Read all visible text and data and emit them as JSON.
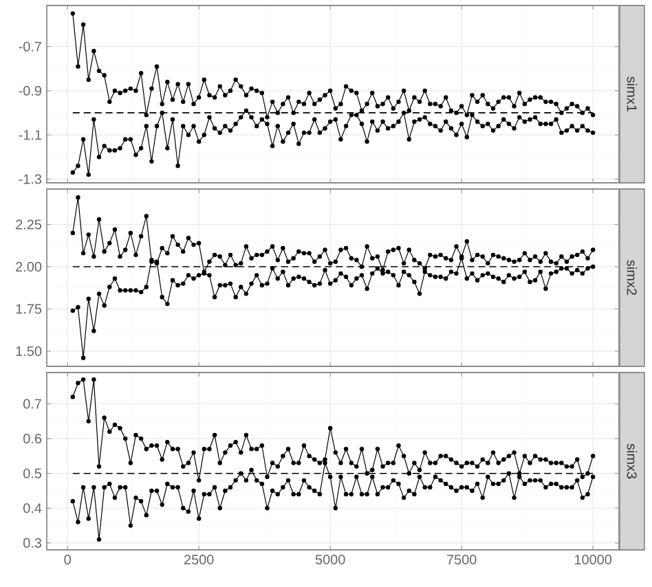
{
  "chart_data": [
    {
      "type": "line",
      "ylabel": "simx1",
      "marker": "circle",
      "grid": true,
      "tick_labels": "y",
      "x": [
        100,
        200,
        300,
        400,
        500,
        600,
        700,
        800,
        900,
        1000,
        1100,
        1200,
        1300,
        1400,
        1500,
        1600,
        1700,
        1800,
        1900,
        2000,
        2100,
        2200,
        2300,
        2400,
        2500,
        2600,
        2700,
        2800,
        2900,
        3000,
        3100,
        3200,
        3300,
        3400,
        3500,
        3600,
        3700,
        3800,
        3900,
        4000,
        4100,
        4200,
        4300,
        4400,
        4500,
        4600,
        4700,
        4800,
        4900,
        5000,
        5100,
        5200,
        5300,
        5400,
        5500,
        5600,
        5700,
        5800,
        5900,
        6000,
        6100,
        6200,
        6300,
        6400,
        6500,
        6600,
        6700,
        6800,
        6900,
        7000,
        7100,
        7200,
        7300,
        7400,
        7500,
        7600,
        7700,
        7800,
        7900,
        8000,
        8100,
        8200,
        8300,
        8400,
        8500,
        8600,
        8700,
        8800,
        8900,
        9000,
        9100,
        9200,
        9300,
        9400,
        9500,
        9600,
        9700,
        9800,
        9900,
        10000
      ],
      "xlim": [
        -395,
        10495
      ],
      "ylim": [
        -1.317,
        -0.514
      ],
      "xticks": [
        0,
        2500,
        5000,
        7500,
        10000
      ],
      "yticks": [
        -1.3,
        -1.1,
        -0.9,
        -0.7
      ],
      "ref_lines": [
        {
          "axis": "y",
          "value": -1,
          "line_style": "dashed",
          "color": "#000000"
        }
      ],
      "series": [
        {
          "color": "#000000",
          "values": [
            -0.55,
            -0.79,
            -0.6,
            -0.85,
            -0.72,
            -0.81,
            -0.83,
            -0.95,
            -0.9,
            -0.91,
            -0.9,
            -0.89,
            -0.9,
            -0.82,
            -1.01,
            -0.89,
            -0.79,
            -0.96,
            -0.86,
            -0.94,
            -0.87,
            -0.95,
            -0.87,
            -0.96,
            -0.93,
            -0.85,
            -0.92,
            -0.93,
            -0.88,
            -0.92,
            -0.9,
            -0.85,
            -0.88,
            -0.92,
            -0.89,
            -0.9,
            -0.91,
            -1.02,
            -0.95,
            -1.0,
            -0.96,
            -0.93,
            -1.0,
            -0.95,
            -0.96,
            -0.91,
            -0.96,
            -0.94,
            -0.92,
            -0.9,
            -0.98,
            -0.96,
            -0.88,
            -0.9,
            -0.91,
            -0.99,
            -0.96,
            -0.91,
            -0.97,
            -0.96,
            -0.93,
            -0.98,
            -0.95,
            -0.9,
            -0.99,
            -0.93,
            -0.95,
            -0.9,
            -0.96,
            -0.96,
            -0.97,
            -0.93,
            -0.99,
            -1.0,
            -0.97,
            -1.01,
            -0.92,
            -0.95,
            -0.92,
            -0.96,
            -0.98,
            -0.95,
            -0.93,
            -0.93,
            -0.97,
            -0.91,
            -0.96,
            -0.94,
            -0.93,
            -0.93,
            -0.95,
            -0.95,
            -0.96,
            -1.0,
            -0.98,
            -0.96,
            -0.97,
            -1.0,
            -0.98,
            -1.01
          ]
        },
        {
          "color": "#000000",
          "values": [
            -1.27,
            -1.24,
            -1.12,
            -1.28,
            -1.03,
            -1.2,
            -1.15,
            -1.17,
            -1.17,
            -1.16,
            -1.12,
            -1.12,
            -1.19,
            -1.16,
            -1.06,
            -1.22,
            -1.06,
            -1.0,
            -1.16,
            -1.03,
            -1.24,
            -1.06,
            -1.1,
            -1.06,
            -1.13,
            -1.1,
            -1.02,
            -1.07,
            -1.09,
            -1.06,
            -1.08,
            -1.05,
            -1.02,
            -0.99,
            -1.02,
            -1.06,
            -1.03,
            -1.05,
            -1.15,
            -1.06,
            -1.13,
            -1.09,
            -1.05,
            -1.14,
            -1.09,
            -1.09,
            -1.03,
            -1.09,
            -1.07,
            -1.04,
            -1.03,
            -1.12,
            -1.06,
            -1.01,
            -1.01,
            -1.05,
            -1.13,
            -1.04,
            -1.08,
            -1.04,
            -1.07,
            -1.06,
            -1.04,
            -1.0,
            -1.12,
            -1.04,
            -1.03,
            -1.02,
            -1.05,
            -1.06,
            -1.08,
            -1.04,
            -1.07,
            -1.1,
            -1.05,
            -1.11,
            -1.01,
            -1.04,
            -1.06,
            -1.05,
            -1.08,
            -1.06,
            -1.03,
            -1.05,
            -1.07,
            -1.02,
            -1.04,
            -1.03,
            -1.02,
            -1.05,
            -1.05,
            -1.05,
            -1.03,
            -1.09,
            -1.08,
            -1.06,
            -1.08,
            -1.06,
            -1.08,
            -1.09
          ]
        }
      ]
    },
    {
      "type": "line",
      "ylabel": "simx2",
      "marker": "circle",
      "grid": true,
      "tick_labels": "y",
      "x": [
        100,
        200,
        300,
        400,
        500,
        600,
        700,
        800,
        900,
        1000,
        1100,
        1200,
        1300,
        1400,
        1500,
        1600,
        1700,
        1800,
        1900,
        2000,
        2100,
        2200,
        2300,
        2400,
        2500,
        2600,
        2700,
        2800,
        2900,
        3000,
        3100,
        3200,
        3300,
        3400,
        3500,
        3600,
        3700,
        3800,
        3900,
        4000,
        4100,
        4200,
        4300,
        4400,
        4500,
        4600,
        4700,
        4800,
        4900,
        5000,
        5100,
        5200,
        5300,
        5400,
        5500,
        5600,
        5700,
        5800,
        5900,
        6000,
        6100,
        6200,
        6300,
        6400,
        6500,
        6600,
        6700,
        6800,
        6900,
        7000,
        7100,
        7200,
        7300,
        7400,
        7500,
        7600,
        7700,
        7800,
        7900,
        8000,
        8100,
        8200,
        8300,
        8400,
        8500,
        8600,
        8700,
        8800,
        8900,
        9000,
        9100,
        9200,
        9300,
        9400,
        9500,
        9600,
        9700,
        9800,
        9900,
        10000
      ],
      "xlim": [
        -395,
        10495
      ],
      "ylim": [
        1.41,
        2.46
      ],
      "xticks": [
        0,
        2500,
        5000,
        7500,
        10000
      ],
      "yticks": [
        {
          "value": 1.5,
          "label": "1.50"
        },
        {
          "value": 1.75,
          "label": "1.75"
        },
        {
          "value": 2,
          "label": "2.00"
        },
        {
          "value": 2.25,
          "label": "2.25"
        }
      ],
      "ref_lines": [
        {
          "axis": "y",
          "value": 2,
          "line_style": "dashed",
          "color": "#000000"
        }
      ],
      "series": [
        {
          "color": "#000000",
          "values": [
            2.2,
            2.41,
            2.08,
            2.19,
            2.06,
            2.28,
            2.09,
            2.14,
            2.22,
            2.06,
            2.1,
            2.2,
            2.07,
            2.18,
            2.3,
            2.03,
            2.02,
            2.11,
            2.08,
            2.18,
            2.13,
            2.09,
            2.17,
            2.13,
            2.14,
            1.97,
            2.03,
            2.07,
            2.06,
            2.01,
            2.07,
            2.01,
            2.02,
            2.12,
            2.05,
            2.07,
            2.07,
            2.09,
            2.12,
            2.04,
            2.11,
            2.03,
            2.05,
            2.09,
            2.08,
            2.08,
            2.03,
            2.06,
            2.1,
            2.02,
            2.03,
            2.1,
            2.11,
            2.05,
            2.04,
            2.0,
            2.12,
            2.05,
            2.06,
            1.98,
            2.09,
            2.1,
            2.11,
            2.02,
            2.1,
            2.04,
            2.02,
            1.99,
            2.07,
            2.06,
            2.07,
            2.05,
            2.04,
            2.12,
            2.06,
            2.15,
            2.04,
            2.07,
            2.06,
            2.02,
            2.07,
            2.06,
            2.05,
            2.04,
            2.03,
            2.04,
            2.08,
            2.04,
            2.06,
            2.03,
            2.08,
            2.03,
            2.02,
            2.06,
            2.03,
            2.06,
            2.07,
            2.09,
            2.05,
            2.1
          ]
        },
        {
          "color": "#000000",
          "values": [
            1.74,
            1.76,
            1.46,
            1.81,
            1.62,
            1.84,
            1.77,
            1.88,
            1.93,
            1.86,
            1.86,
            1.86,
            1.86,
            1.85,
            1.88,
            2.04,
            2.03,
            1.82,
            1.78,
            1.92,
            1.89,
            1.9,
            1.95,
            1.93,
            1.95,
            1.96,
            1.95,
            1.82,
            1.89,
            1.89,
            1.9,
            1.82,
            1.88,
            1.84,
            1.9,
            1.95,
            1.89,
            1.9,
            1.99,
            1.93,
            1.97,
            1.89,
            1.93,
            1.94,
            1.93,
            1.91,
            1.89,
            1.9,
            1.98,
            1.9,
            1.92,
            1.96,
            1.94,
            1.89,
            1.93,
            1.95,
            1.87,
            1.96,
            1.99,
            1.96,
            1.97,
            1.95,
            1.89,
            1.97,
            1.95,
            1.91,
            1.84,
            1.97,
            1.95,
            1.94,
            1.94,
            1.93,
            1.97,
            1.96,
            2.05,
            1.93,
            1.96,
            1.92,
            1.95,
            1.96,
            1.94,
            1.93,
            1.91,
            1.95,
            1.93,
            1.94,
            1.97,
            1.91,
            1.92,
            1.97,
            1.87,
            1.96,
            1.97,
            1.99,
            1.99,
            1.96,
            1.98,
            1.96,
            1.99,
            2.0
          ]
        }
      ]
    },
    {
      "type": "line",
      "ylabel": "simx3",
      "marker": "circle",
      "grid": true,
      "x": [
        100,
        200,
        300,
        400,
        500,
        600,
        700,
        800,
        900,
        1000,
        1100,
        1200,
        1300,
        1400,
        1500,
        1600,
        1700,
        1800,
        1900,
        2000,
        2100,
        2200,
        2300,
        2400,
        2500,
        2600,
        2700,
        2800,
        2900,
        3000,
        3100,
        3200,
        3300,
        3400,
        3500,
        3600,
        3700,
        3800,
        3900,
        4000,
        4100,
        4200,
        4300,
        4400,
        4500,
        4600,
        4700,
        4800,
        4900,
        5000,
        5100,
        5200,
        5300,
        5400,
        5500,
        5600,
        5700,
        5800,
        5900,
        6000,
        6100,
        6200,
        6300,
        6400,
        6500,
        6600,
        6700,
        6800,
        6900,
        7000,
        7100,
        7200,
        7300,
        7400,
        7500,
        7600,
        7700,
        7800,
        7900,
        8000,
        8100,
        8200,
        8300,
        8400,
        8500,
        8600,
        8700,
        8800,
        8900,
        9000,
        9100,
        9200,
        9300,
        9400,
        9500,
        9600,
        9700,
        9800,
        9900,
        10000
      ],
      "xlim": [
        -395,
        10495
      ],
      "ylim": [
        0.28,
        0.79
      ],
      "xticks": [
        0,
        2500,
        5000,
        7500,
        10000
      ],
      "yticks": [
        0.3,
        0.4,
        0.5,
        0.6,
        0.7
      ],
      "ref_lines": [
        {
          "axis": "y",
          "value": 0.5,
          "line_style": "dashed",
          "color": "#000000"
        }
      ],
      "series": [
        {
          "color": "#000000",
          "values": [
            0.72,
            0.76,
            0.77,
            0.65,
            0.77,
            0.52,
            0.66,
            0.62,
            0.64,
            0.63,
            0.6,
            0.53,
            0.61,
            0.6,
            0.57,
            0.58,
            0.58,
            0.54,
            0.59,
            0.57,
            0.57,
            0.52,
            0.53,
            0.56,
            0.48,
            0.57,
            0.57,
            0.61,
            0.53,
            0.56,
            0.58,
            0.59,
            0.56,
            0.61,
            0.57,
            0.57,
            0.58,
            0.49,
            0.53,
            0.52,
            0.55,
            0.57,
            0.53,
            0.53,
            0.58,
            0.55,
            0.54,
            0.53,
            0.54,
            0.63,
            0.56,
            0.53,
            0.57,
            0.53,
            0.52,
            0.57,
            0.5,
            0.51,
            0.57,
            0.52,
            0.53,
            0.53,
            0.58,
            0.55,
            0.5,
            0.53,
            0.51,
            0.56,
            0.53,
            0.53,
            0.55,
            0.55,
            0.54,
            0.53,
            0.52,
            0.53,
            0.53,
            0.52,
            0.54,
            0.53,
            0.56,
            0.53,
            0.54,
            0.55,
            0.56,
            0.5,
            0.55,
            0.53,
            0.55,
            0.54,
            0.54,
            0.53,
            0.53,
            0.53,
            0.52,
            0.52,
            0.54,
            0.49,
            0.5,
            0.55
          ]
        },
        {
          "color": "#000000",
          "values": [
            0.42,
            0.36,
            0.46,
            0.37,
            0.46,
            0.31,
            0.46,
            0.47,
            0.43,
            0.46,
            0.46,
            0.35,
            0.43,
            0.42,
            0.38,
            0.45,
            0.45,
            0.41,
            0.47,
            0.46,
            0.46,
            0.4,
            0.39,
            0.45,
            0.37,
            0.44,
            0.44,
            0.46,
            0.4,
            0.45,
            0.46,
            0.48,
            0.5,
            0.48,
            0.51,
            0.48,
            0.47,
            0.4,
            0.45,
            0.44,
            0.46,
            0.48,
            0.44,
            0.44,
            0.48,
            0.46,
            0.45,
            0.44,
            0.53,
            0.49,
            0.4,
            0.49,
            0.44,
            0.44,
            0.49,
            0.44,
            0.44,
            0.49,
            0.44,
            0.46,
            0.46,
            0.48,
            0.47,
            0.43,
            0.45,
            0.44,
            0.49,
            0.46,
            0.46,
            0.49,
            0.48,
            0.47,
            0.46,
            0.45,
            0.46,
            0.46,
            0.45,
            0.47,
            0.43,
            0.49,
            0.47,
            0.47,
            0.48,
            0.5,
            0.43,
            0.49,
            0.47,
            0.48,
            0.48,
            0.48,
            0.46,
            0.47,
            0.47,
            0.46,
            0.46,
            0.46,
            0.48,
            0.43,
            0.44,
            0.49
          ]
        }
      ]
    }
  ]
}
